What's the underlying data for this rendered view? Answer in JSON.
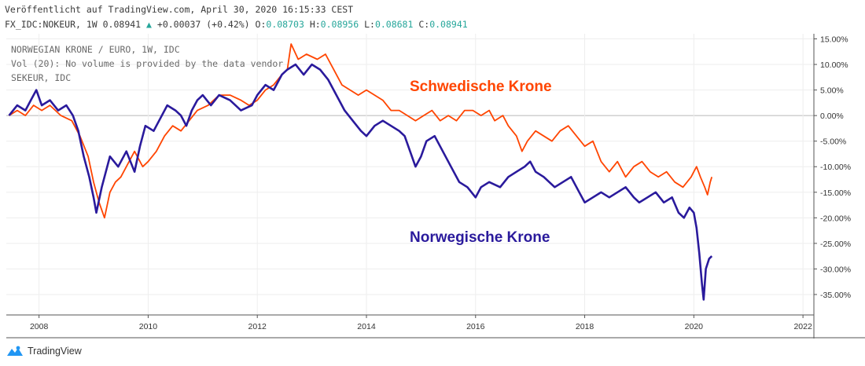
{
  "header": {
    "line1": "Veröffentlicht auf TradingView.com, April 30, 2020 16:15:33 CEST",
    "symbol": "FX_IDC:NOKEUR, 1W 0.08941",
    "up_arrow": "▲",
    "change": "+0.00037 (+0.42%)",
    "o_label": "O:",
    "o_value": "0.08703",
    "h_label": "H:",
    "h_value": "0.08956",
    "l_label": "L:",
    "l_value": "0.08681",
    "c_label": "C:",
    "c_value": "0.08941"
  },
  "legend": {
    "main_series": "NORWEGIAN KRONE / EURO, 1W, IDC",
    "volume": "Vol (20): No volume is provided by the data vendor",
    "compare_series": "SEKEUR, IDC"
  },
  "annotations": {
    "sek": "Schwedische Krone",
    "nok": "Norwegische Krone"
  },
  "branding": {
    "name": "TradingView",
    "icon": "tradingview-logo-icon"
  },
  "colors": {
    "nok": "#2a1a9c",
    "sek": "#ff4500",
    "grid": "#eeeeee",
    "zero": "#b8b8b8"
  },
  "chart_data": {
    "type": "line",
    "x_unit": "year",
    "xlim": [
      2007.4,
      2022.2
    ],
    "ylim": [
      -39,
      16
    ],
    "x_ticks": [
      2008,
      2010,
      2012,
      2014,
      2016,
      2018,
      2020,
      2022
    ],
    "x_tick_labels": [
      "2008",
      "2010",
      "2012",
      "2014",
      "2016",
      "2018",
      "2020",
      "2022"
    ],
    "y_ticks": [
      15,
      10,
      5,
      0,
      -5,
      -10,
      -15,
      -20,
      -25,
      -30,
      -35
    ],
    "y_tick_labels": [
      "15.00%",
      "10.00%",
      "5.00%",
      "0.00%",
      "-5.00%",
      "-10.00%",
      "-15.00%",
      "-20.00%",
      "-25.00%",
      "-30.00%",
      "-35.00%"
    ],
    "grid": true,
    "series": [
      {
        "name": "NORWEGIAN KRONE / EURO",
        "color": "#2a1a9c",
        "points": [
          [
            2007.45,
            0
          ],
          [
            2007.6,
            2
          ],
          [
            2007.75,
            1
          ],
          [
            2007.85,
            3
          ],
          [
            2007.95,
            5
          ],
          [
            2008.05,
            2
          ],
          [
            2008.2,
            3
          ],
          [
            2008.35,
            1
          ],
          [
            2008.5,
            2
          ],
          [
            2008.62,
            0
          ],
          [
            2008.72,
            -3
          ],
          [
            2008.82,
            -8
          ],
          [
            2008.92,
            -12
          ],
          [
            2009.0,
            -16
          ],
          [
            2009.05,
            -19
          ],
          [
            2009.15,
            -14
          ],
          [
            2009.3,
            -8
          ],
          [
            2009.45,
            -10
          ],
          [
            2009.6,
            -7
          ],
          [
            2009.75,
            -11
          ],
          [
            2009.85,
            -6
          ],
          [
            2009.95,
            -2
          ],
          [
            2010.1,
            -3
          ],
          [
            2010.2,
            -1
          ],
          [
            2010.35,
            2
          ],
          [
            2010.5,
            1
          ],
          [
            2010.6,
            0
          ],
          [
            2010.7,
            -2
          ],
          [
            2010.8,
            1
          ],
          [
            2010.9,
            3
          ],
          [
            2011.0,
            4
          ],
          [
            2011.15,
            2
          ],
          [
            2011.3,
            4
          ],
          [
            2011.5,
            3
          ],
          [
            2011.7,
            1
          ],
          [
            2011.9,
            2
          ],
          [
            2012.0,
            4
          ],
          [
            2012.15,
            6
          ],
          [
            2012.3,
            5
          ],
          [
            2012.45,
            8
          ],
          [
            2012.55,
            9
          ],
          [
            2012.7,
            10
          ],
          [
            2012.85,
            8
          ],
          [
            2013.0,
            10
          ],
          [
            2013.15,
            9
          ],
          [
            2013.3,
            7
          ],
          [
            2013.45,
            4
          ],
          [
            2013.6,
            1
          ],
          [
            2013.75,
            -1
          ],
          [
            2013.9,
            -3
          ],
          [
            2014.0,
            -4
          ],
          [
            2014.15,
            -2
          ],
          [
            2014.3,
            -1
          ],
          [
            2014.45,
            -2
          ],
          [
            2014.6,
            -3
          ],
          [
            2014.7,
            -4
          ],
          [
            2014.8,
            -7
          ],
          [
            2014.9,
            -10
          ],
          [
            2015.0,
            -8
          ],
          [
            2015.1,
            -5
          ],
          [
            2015.25,
            -4
          ],
          [
            2015.4,
            -7
          ],
          [
            2015.55,
            -10
          ],
          [
            2015.7,
            -13
          ],
          [
            2015.85,
            -14
          ],
          [
            2016.0,
            -16
          ],
          [
            2016.1,
            -14
          ],
          [
            2016.25,
            -13
          ],
          [
            2016.45,
            -14
          ],
          [
            2016.6,
            -12
          ],
          [
            2016.75,
            -11
          ],
          [
            2016.9,
            -10
          ],
          [
            2017.0,
            -9
          ],
          [
            2017.1,
            -11
          ],
          [
            2017.25,
            -12
          ],
          [
            2017.45,
            -14
          ],
          [
            2017.6,
            -13
          ],
          [
            2017.75,
            -12
          ],
          [
            2017.9,
            -15
          ],
          [
            2018.0,
            -17
          ],
          [
            2018.15,
            -16
          ],
          [
            2018.3,
            -15
          ],
          [
            2018.45,
            -16
          ],
          [
            2018.6,
            -15
          ],
          [
            2018.75,
            -14
          ],
          [
            2018.9,
            -16
          ],
          [
            2019.0,
            -17
          ],
          [
            2019.15,
            -16
          ],
          [
            2019.3,
            -15
          ],
          [
            2019.45,
            -17
          ],
          [
            2019.6,
            -16
          ],
          [
            2019.72,
            -19
          ],
          [
            2019.82,
            -20
          ],
          [
            2019.92,
            -18
          ],
          [
            2020.0,
            -19
          ],
          [
            2020.05,
            -22
          ],
          [
            2020.1,
            -27
          ],
          [
            2020.15,
            -33
          ],
          [
            2020.18,
            -36
          ],
          [
            2020.22,
            -30
          ],
          [
            2020.28,
            -28
          ],
          [
            2020.33,
            -27.5
          ]
        ]
      },
      {
        "name": "SEKEUR",
        "color": "#ff4500",
        "points": [
          [
            2007.45,
            0
          ],
          [
            2007.6,
            1
          ],
          [
            2007.75,
            0
          ],
          [
            2007.9,
            2
          ],
          [
            2008.05,
            1
          ],
          [
            2008.2,
            2
          ],
          [
            2008.4,
            0
          ],
          [
            2008.6,
            -1
          ],
          [
            2008.75,
            -4
          ],
          [
            2008.9,
            -8
          ],
          [
            2009.0,
            -13
          ],
          [
            2009.1,
            -17
          ],
          [
            2009.2,
            -20
          ],
          [
            2009.3,
            -15
          ],
          [
            2009.4,
            -13
          ],
          [
            2009.5,
            -12
          ],
          [
            2009.6,
            -10
          ],
          [
            2009.75,
            -7
          ],
          [
            2009.9,
            -10
          ],
          [
            2010.0,
            -9
          ],
          [
            2010.15,
            -7
          ],
          [
            2010.3,
            -4
          ],
          [
            2010.45,
            -2
          ],
          [
            2010.6,
            -3
          ],
          [
            2010.75,
            -1
          ],
          [
            2010.9,
            1
          ],
          [
            2011.1,
            2
          ],
          [
            2011.3,
            4
          ],
          [
            2011.5,
            4
          ],
          [
            2011.7,
            3
          ],
          [
            2011.85,
            2
          ],
          [
            2012.0,
            3
          ],
          [
            2012.15,
            5
          ],
          [
            2012.3,
            6
          ],
          [
            2012.45,
            8
          ],
          [
            2012.55,
            9
          ],
          [
            2012.62,
            14
          ],
          [
            2012.75,
            11
          ],
          [
            2012.9,
            12
          ],
          [
            2013.1,
            11
          ],
          [
            2013.25,
            12
          ],
          [
            2013.4,
            9
          ],
          [
            2013.55,
            6
          ],
          [
            2013.7,
            5
          ],
          [
            2013.85,
            4
          ],
          [
            2014.0,
            5
          ],
          [
            2014.15,
            4
          ],
          [
            2014.3,
            3
          ],
          [
            2014.45,
            1
          ],
          [
            2014.6,
            1
          ],
          [
            2014.75,
            0
          ],
          [
            2014.9,
            -1
          ],
          [
            2015.05,
            0
          ],
          [
            2015.2,
            1
          ],
          [
            2015.35,
            -1
          ],
          [
            2015.5,
            0
          ],
          [
            2015.65,
            -1
          ],
          [
            2015.8,
            1
          ],
          [
            2015.95,
            1
          ],
          [
            2016.1,
            0
          ],
          [
            2016.25,
            1
          ],
          [
            2016.35,
            -1
          ],
          [
            2016.5,
            0
          ],
          [
            2016.6,
            -2
          ],
          [
            2016.75,
            -4
          ],
          [
            2016.85,
            -7
          ],
          [
            2016.95,
            -5
          ],
          [
            2017.1,
            -3
          ],
          [
            2017.25,
            -4
          ],
          [
            2017.4,
            -5
          ],
          [
            2017.55,
            -3
          ],
          [
            2017.7,
            -2
          ],
          [
            2017.85,
            -4
          ],
          [
            2018.0,
            -6
          ],
          [
            2018.15,
            -5
          ],
          [
            2018.3,
            -9
          ],
          [
            2018.45,
            -11
          ],
          [
            2018.6,
            -9
          ],
          [
            2018.75,
            -12
          ],
          [
            2018.9,
            -10
          ],
          [
            2019.05,
            -9
          ],
          [
            2019.2,
            -11
          ],
          [
            2019.35,
            -12
          ],
          [
            2019.5,
            -11
          ],
          [
            2019.65,
            -13
          ],
          [
            2019.8,
            -14
          ],
          [
            2019.95,
            -12
          ],
          [
            2020.0,
            -11
          ],
          [
            2020.05,
            -10
          ],
          [
            2020.12,
            -12
          ],
          [
            2020.2,
            -14
          ],
          [
            2020.25,
            -15.5
          ],
          [
            2020.3,
            -13
          ],
          [
            2020.33,
            -12
          ]
        ]
      }
    ]
  }
}
